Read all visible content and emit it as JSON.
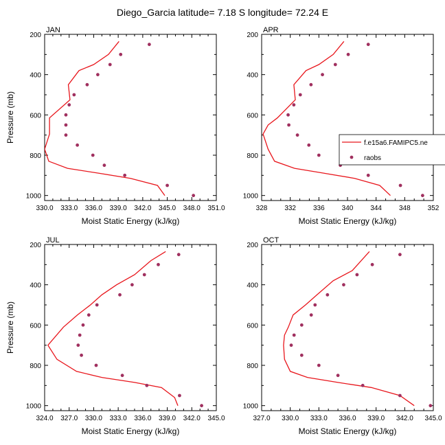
{
  "title": "Diego_Garcia  latitude= 7.18 S longitude= 72.24 E",
  "colors": {
    "model": "#e8151b",
    "obs": "#a0305f"
  },
  "legend": {
    "model_label": "f.e15a6.FAMIPC5.ne",
    "obs_label": "raobs"
  },
  "chart_data": [
    {
      "type": "line",
      "panel_title": "JAN",
      "xlabel": "Moist Static Energy (kJ/kg)",
      "ylabel": "Pressure (mb)",
      "xlim": [
        330,
        351
      ],
      "ylim": [
        1025,
        200
      ],
      "xticks": [
        330,
        333,
        336,
        339,
        342,
        345,
        348,
        351
      ],
      "xtick_labels": [
        "330.0",
        "333.0",
        "336.0",
        "339.0",
        "342.0",
        "345.0",
        "348.0",
        "351.0"
      ],
      "yticks": [
        200,
        400,
        600,
        800,
        1000
      ],
      "yticks_minor": [
        300,
        500,
        700,
        900
      ],
      "series": [
        {
          "name": "f.e15a6.FAMIPC5.ne",
          "kind": "line",
          "x": [
            339.1,
            337.8,
            336.0,
            334.2,
            332.9,
            333.1,
            330.6,
            330.6,
            330.6,
            330.0,
            330.5,
            332.8,
            336.7,
            340.5,
            343.8,
            344.7
          ],
          "y": [
            235,
            300,
            350,
            380,
            450,
            525,
            615,
            650,
            695,
            770,
            830,
            865,
            890,
            915,
            950,
            1000
          ]
        },
        {
          "name": "raobs",
          "kind": "scatter",
          "x": [
            342.8,
            339.3,
            338.0,
            336.5,
            335.2,
            333.6,
            333.0,
            332.6,
            332.6,
            332.6,
            334.0,
            335.9,
            337.3,
            339.8,
            345.0,
            348.2
          ],
          "y": [
            250,
            300,
            350,
            400,
            450,
            500,
            550,
            600,
            650,
            700,
            750,
            800,
            850,
            900,
            950,
            1000
          ]
        }
      ]
    },
    {
      "type": "line",
      "panel_title": "APR",
      "xlabel": "Moist Static Energy (kJ/kg)",
      "ylabel": "",
      "xlim": [
        328,
        352
      ],
      "ylim": [
        1025,
        200
      ],
      "xticks": [
        328,
        332,
        336,
        340,
        344,
        348,
        352
      ],
      "xtick_labels": [
        "328",
        "332",
        "336",
        "340",
        "344",
        "348",
        "352"
      ],
      "yticks": [
        200,
        400,
        600,
        800,
        1000
      ],
      "yticks_minor": [
        300,
        500,
        700,
        900
      ],
      "series": [
        {
          "name": "f.e15a6.FAMIPC5.ne",
          "kind": "line",
          "x": [
            339.5,
            338.0,
            336.0,
            334.2,
            332.5,
            332.7,
            330.2,
            328.9,
            328.2,
            328.9,
            329.8,
            332.6,
            336.8,
            341.0,
            344.5,
            346.0
          ],
          "y": [
            235,
            300,
            350,
            380,
            450,
            525,
            615,
            650,
            695,
            770,
            830,
            865,
            890,
            915,
            950,
            1000
          ]
        },
        {
          "name": "raobs",
          "kind": "scatter",
          "x": [
            342.9,
            340.1,
            338.3,
            336.5,
            334.9,
            333.4,
            332.5,
            331.7,
            331.8,
            333.0,
            334.6,
            336.0,
            339.0,
            342.9,
            347.4,
            350.5
          ],
          "y": [
            250,
            300,
            350,
            400,
            450,
            500,
            550,
            600,
            650,
            700,
            750,
            800,
            850,
            900,
            950,
            1000
          ]
        }
      ]
    },
    {
      "type": "line",
      "panel_title": "JUL",
      "xlabel": "Moist Static Energy (kJ/kg)",
      "ylabel": "Pressure (mb)",
      "xlim": [
        324,
        345
      ],
      "ylim": [
        1025,
        200
      ],
      "xticks": [
        324,
        327,
        330,
        333,
        336,
        339,
        342,
        345
      ],
      "xtick_labels": [
        "324.0",
        "327.0",
        "330.0",
        "333.0",
        "336.0",
        "339.0",
        "342.0",
        "345.0"
      ],
      "yticks": [
        200,
        400,
        600,
        800,
        1000
      ],
      "yticks_minor": [
        300,
        500,
        700,
        900
      ],
      "series": [
        {
          "name": "f.e15a6.FAMIPC5.ne",
          "kind": "line",
          "x": [
            338.8,
            337.0,
            335.0,
            332.8,
            331.0,
            329.6,
            328.0,
            326.3,
            324.4,
            325.5,
            327.9,
            331.0,
            335.0,
            338.3,
            339.9,
            340.3
          ],
          "y": [
            235,
            280,
            350,
            400,
            450,
            500,
            550,
            610,
            700,
            770,
            830,
            860,
            885,
            910,
            960,
            1000
          ]
        },
        {
          "name": "raobs",
          "kind": "scatter",
          "x": [
            340.4,
            337.9,
            336.2,
            334.7,
            333.2,
            330.4,
            329.4,
            328.7,
            328.3,
            328.1,
            328.5,
            330.3,
            333.5,
            336.5,
            340.5,
            343.2
          ],
          "y": [
            250,
            300,
            350,
            400,
            450,
            500,
            550,
            600,
            650,
            700,
            750,
            800,
            850,
            900,
            950,
            1000
          ]
        }
      ]
    },
    {
      "type": "line",
      "panel_title": "OCT",
      "xlabel": "Moist Static Energy (kJ/kg)",
      "ylabel": "",
      "xlim": [
        327,
        345
      ],
      "ylim": [
        1025,
        200
      ],
      "xticks": [
        327,
        330,
        333,
        336,
        339,
        342,
        345
      ],
      "xtick_labels": [
        "327.0",
        "330.0",
        "333.0",
        "336.0",
        "339.0",
        "342.0",
        "345.0"
      ],
      "yticks": [
        200,
        400,
        600,
        800,
        1000
      ],
      "yticks_minor": [
        300,
        500,
        700,
        900
      ],
      "series": [
        {
          "name": "f.e15a6.FAMIPC5.ne",
          "kind": "line",
          "x": [
            338.3,
            336.5,
            334.5,
            332.8,
            331.6,
            330.3,
            329.8,
            329.4,
            329.3,
            329.4,
            330.0,
            331.8,
            335.0,
            338.5,
            341.5,
            343.0
          ],
          "y": [
            235,
            330,
            380,
            450,
            500,
            550,
            610,
            650,
            700,
            770,
            830,
            860,
            885,
            910,
            950,
            1000
          ]
        },
        {
          "name": "raobs",
          "kind": "scatter",
          "x": [
            341.5,
            338.6,
            337.0,
            335.6,
            333.9,
            332.6,
            332.2,
            331.2,
            330.4,
            330.1,
            331.2,
            333.0,
            335.0,
            337.6,
            341.5,
            344.7
          ],
          "y": [
            250,
            300,
            350,
            400,
            450,
            500,
            550,
            600,
            650,
            700,
            750,
            800,
            850,
            900,
            950,
            1000
          ]
        }
      ]
    }
  ]
}
